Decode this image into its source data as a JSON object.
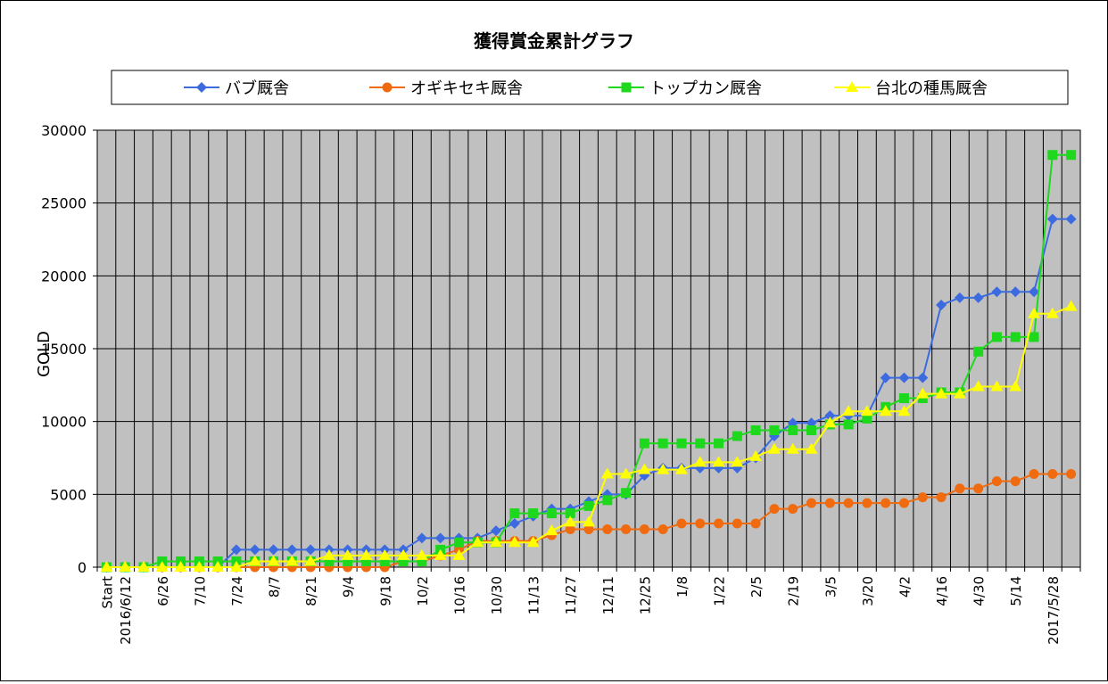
{
  "chart_data": {
    "type": "line",
    "title": "獲得賞金累計グラフ",
    "xlabel": "",
    "ylabel": "GOLD",
    "ylim": [
      0,
      30000
    ],
    "y_ticks": [
      0,
      5000,
      10000,
      15000,
      20000,
      25000,
      30000
    ],
    "grid": true,
    "legend_position": "top",
    "plot_background": "#c0c0c0",
    "categories": [
      "Start",
      "2016/6/12",
      "",
      "6/26",
      "",
      "7/10",
      "",
      "7/24",
      "",
      "8/7",
      "",
      "8/21",
      "",
      "9/4",
      "",
      "9/18",
      "",
      "10/2",
      "",
      "10/16",
      "",
      "10/30",
      "",
      "11/13",
      "",
      "11/27",
      "",
      "12/11",
      "",
      "12/25",
      "",
      "1/8",
      "",
      "1/22",
      "",
      "2/5",
      "",
      "2/19",
      "",
      "3/5",
      "",
      "3/20",
      "",
      "4/2",
      "",
      "4/16",
      "",
      "4/30",
      "",
      "5/14",
      "",
      "2017/5/28",
      ""
    ],
    "series": [
      {
        "name": "バブ厩舎",
        "color": "#3c6be0",
        "marker": "diamond",
        "values": [
          0,
          0,
          0,
          0,
          0,
          0,
          0,
          1200,
          1200,
          1200,
          1200,
          1200,
          1200,
          1200,
          1200,
          1200,
          1200,
          2000,
          2000,
          2000,
          2000,
          2500,
          3000,
          3500,
          4000,
          4000,
          4500,
          5000,
          5000,
          6300,
          6800,
          6800,
          6800,
          6800,
          6800,
          7500,
          9000,
          9900,
          9900,
          10400,
          10400,
          10400,
          13000,
          13000,
          13000,
          18000,
          18500,
          18500,
          18900,
          18900,
          18900,
          23900,
          23900
        ]
      },
      {
        "name": "オギキセキ厩舎",
        "color": "#f06a10",
        "marker": "circle",
        "values": [
          0,
          0,
          0,
          0,
          0,
          0,
          0,
          0,
          0,
          0,
          0,
          0,
          0,
          0,
          0,
          0,
          400,
          400,
          800,
          1200,
          1800,
          1800,
          1800,
          1800,
          2200,
          2600,
          2600,
          2600,
          2600,
          2600,
          2600,
          3000,
          3000,
          3000,
          3000,
          3000,
          4000,
          4000,
          4400,
          4400,
          4400,
          4400,
          4400,
          4400,
          4800,
          4800,
          5400,
          5400,
          5900,
          5900,
          6400,
          6400,
          6400
        ]
      },
      {
        "name": "トップカン厩舎",
        "color": "#1ed81e",
        "marker": "square",
        "values": [
          0,
          0,
          0,
          400,
          400,
          400,
          400,
          400,
          400,
          400,
          400,
          400,
          400,
          400,
          400,
          400,
          400,
          400,
          1200,
          1700,
          1700,
          1700,
          3700,
          3700,
          3700,
          3700,
          4200,
          4600,
          5100,
          8500,
          8500,
          8500,
          8500,
          8500,
          9000,
          9400,
          9400,
          9400,
          9400,
          9800,
          9800,
          10200,
          11000,
          11600,
          11600,
          12000,
          12000,
          14800,
          15800,
          15800,
          15800,
          28300,
          28300
        ]
      },
      {
        "name": "台北の種馬厩舎",
        "color": "#ffff00",
        "marker": "triangle",
        "values": [
          0,
          0,
          0,
          0,
          0,
          0,
          0,
          0,
          400,
          400,
          400,
          400,
          800,
          800,
          800,
          800,
          800,
          800,
          800,
          800,
          1700,
          1700,
          1700,
          1700,
          2500,
          3100,
          3100,
          6400,
          6400,
          6700,
          6700,
          6700,
          7200,
          7200,
          7200,
          7600,
          8100,
          8100,
          8100,
          9900,
          10700,
          10700,
          10700,
          10700,
          11900,
          11900,
          11900,
          12400,
          12400,
          12400,
          17400,
          17400,
          17900
        ]
      }
    ]
  }
}
